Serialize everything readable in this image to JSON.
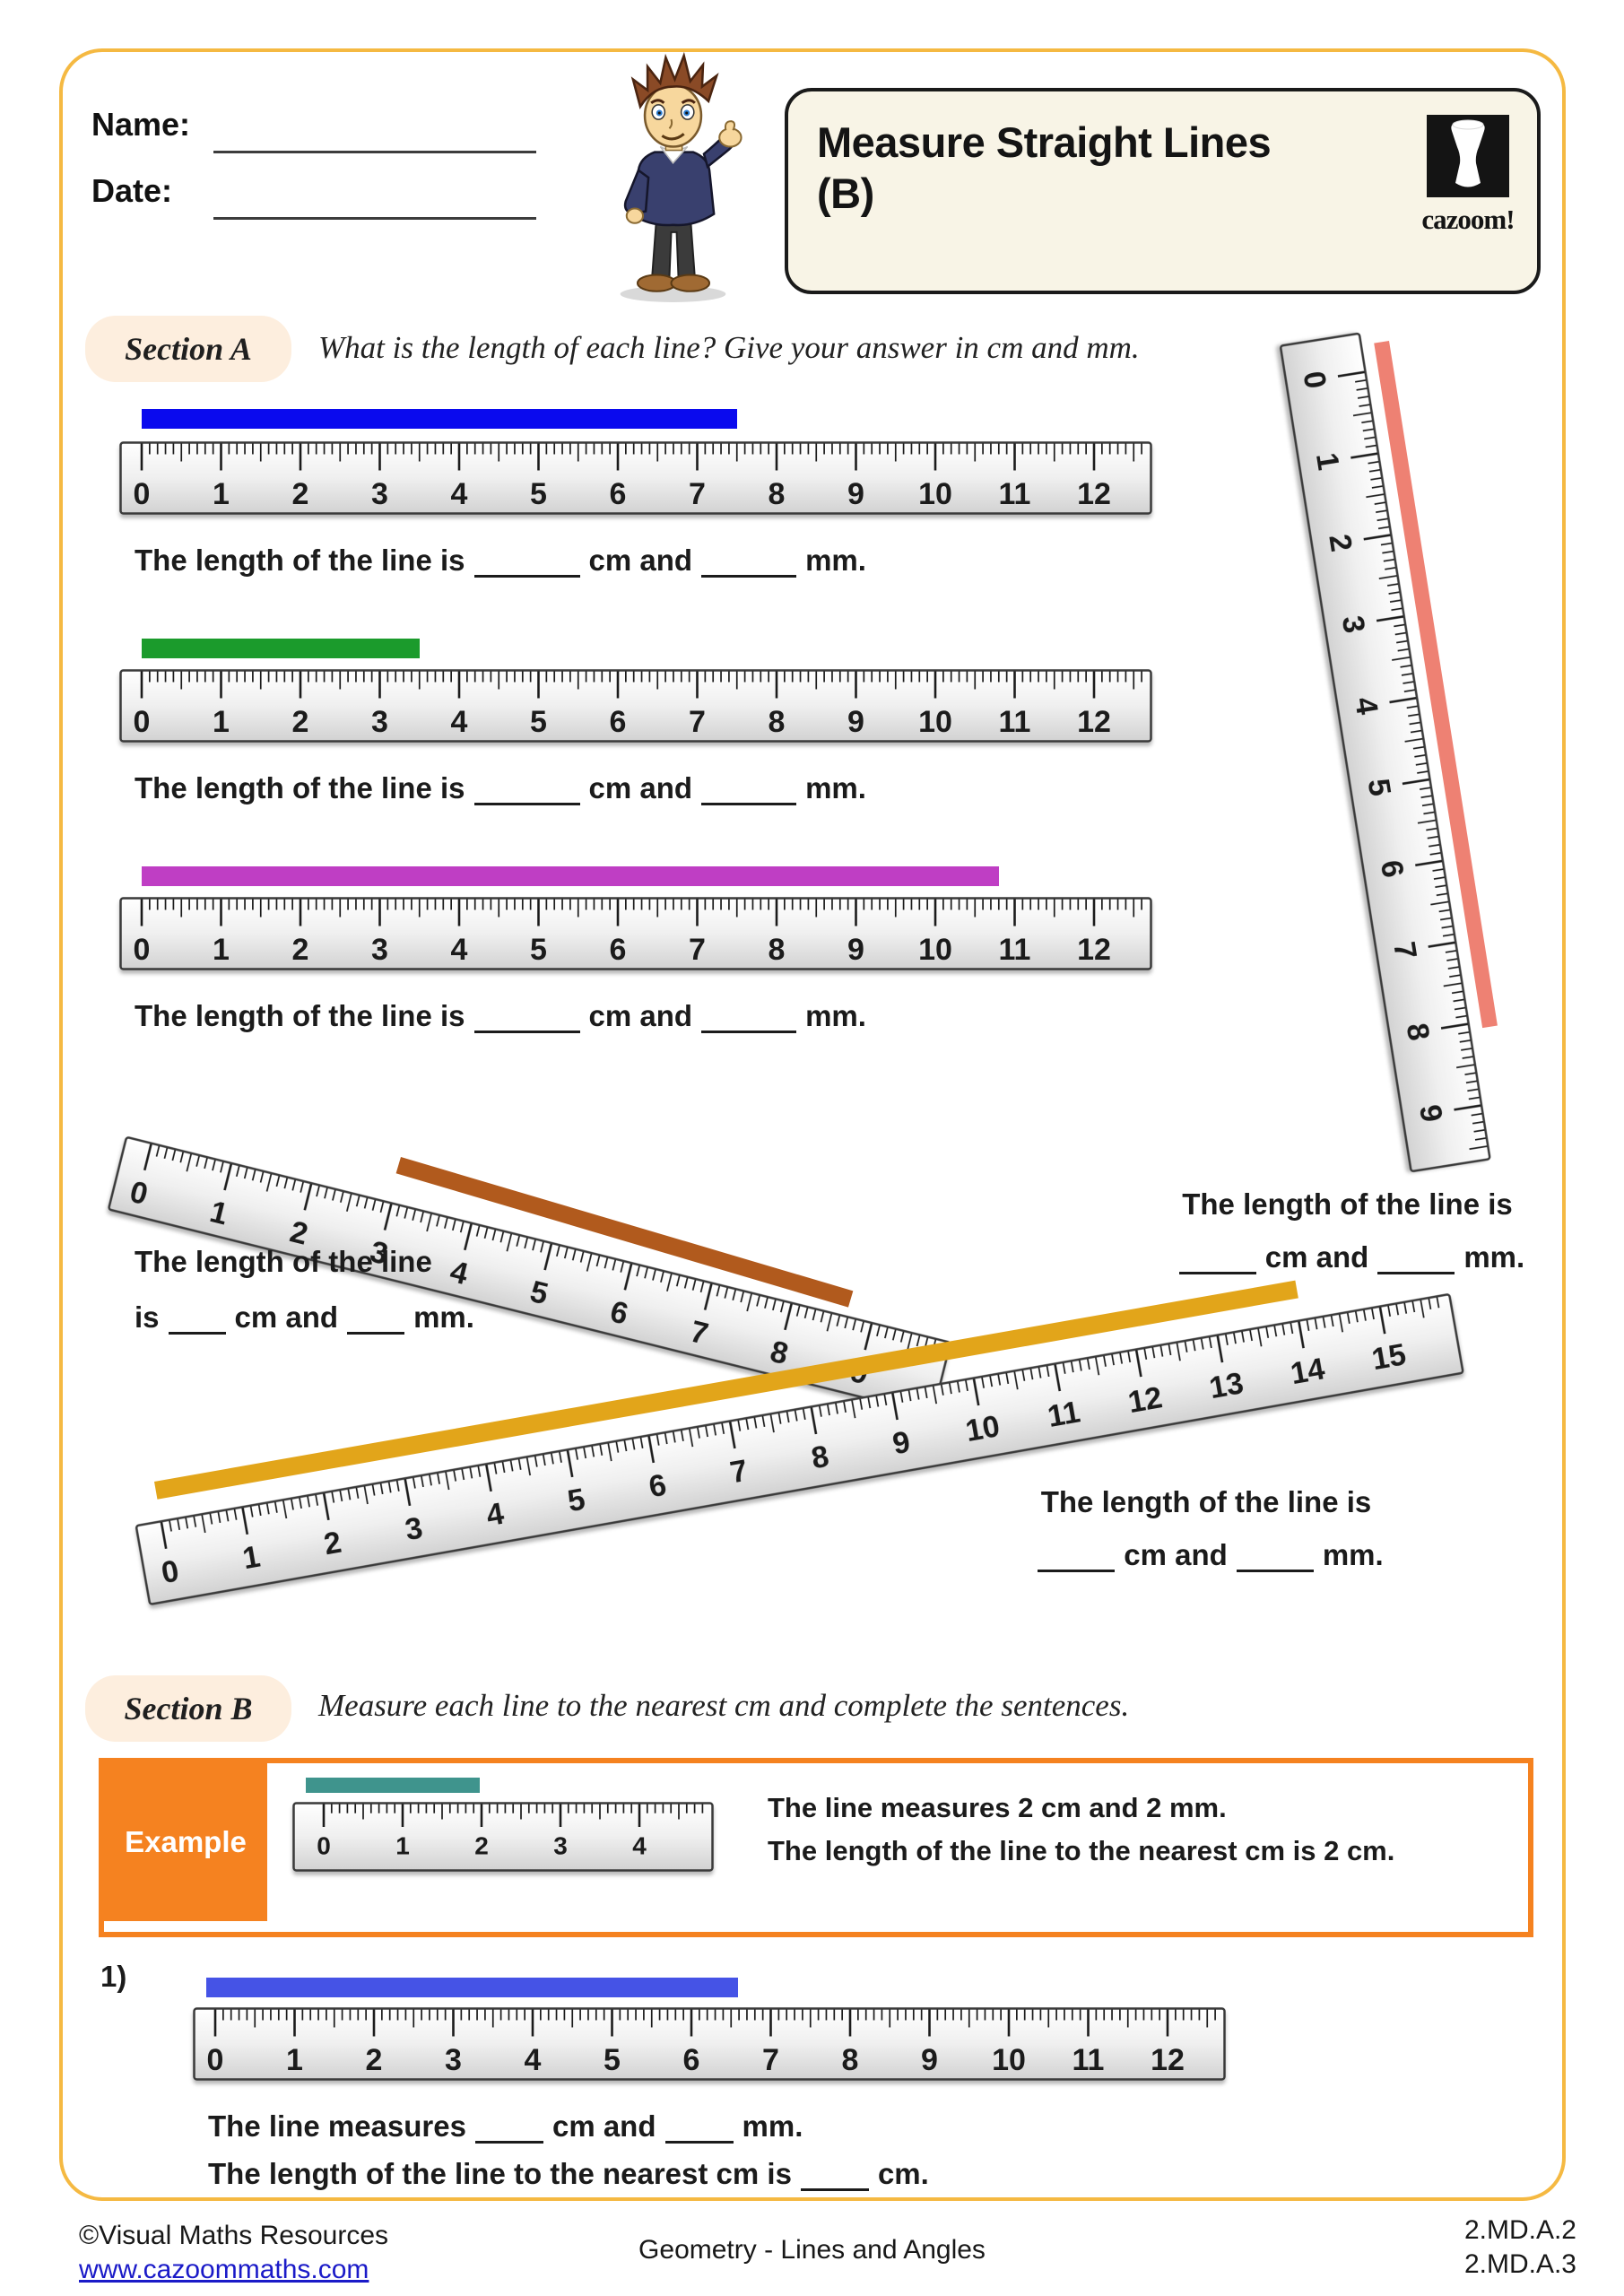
{
  "header": {
    "name_label": "Name:",
    "date_label": "Date:",
    "title_line1": "Measure Straight Lines",
    "title_line2": "(B)",
    "logo_text": "cazoom!",
    "border_color": "#f5b942"
  },
  "section_a": {
    "label": "Section A",
    "instruction": "What is the length of each line? Give your answer in cm and mm.",
    "answer_sentence": {
      "p1": "The length of the line is",
      "p2": "cm and",
      "p3": "mm."
    },
    "tilted_sentence": {
      "p1": "The length of the line",
      "p2": "is",
      "p3": "cm and",
      "p4": "mm."
    },
    "side_sentence": {
      "p1": "The length of the line is",
      "p2": "cm and",
      "p3": "mm."
    },
    "rulers": {
      "r1": {
        "min": 0,
        "max": 12
      },
      "r2": {
        "min": 0,
        "max": 12
      },
      "r3": {
        "min": 0,
        "max": 12
      },
      "tilted": {
        "min": 0,
        "max": 9
      },
      "vertical": {
        "min": 0,
        "max": 9
      },
      "long": {
        "min": 0,
        "max": 15
      }
    },
    "lines": {
      "l1": {
        "color": "#0a0aee",
        "start_cm": 0,
        "length_cm": 7.5
      },
      "l2": {
        "color": "#1b9b2c",
        "start_cm": 0,
        "length_cm": 3.5
      },
      "l3": {
        "color": "#bf3ec4",
        "start_cm": 0,
        "length_cm": 10.8
      },
      "l4": {
        "color": "#b15a1d",
        "start_cm": 3.1,
        "length_cm": 5.6
      },
      "l5": {
        "color": "#ee8173",
        "start_cm": 0,
        "length_cm": 8.4
      },
      "l6": {
        "color": "#e2a51a",
        "start_cm": 0,
        "length_cm": 13.6
      }
    }
  },
  "section_b": {
    "label": "Section B",
    "instruction": "Measure each line to the nearest cm and complete the sentences.",
    "example": {
      "label": "Example",
      "ruler": {
        "min": 0,
        "max": 4
      },
      "line": {
        "color": "#3f948d",
        "start_cm": 0,
        "length_cm": 2.2
      },
      "text_line1": "The line measures 2 cm and 2 mm.",
      "text_line2": "The length of the line to the nearest cm is 2 cm."
    },
    "q1": {
      "number": "1)",
      "ruler": {
        "min": 0,
        "max": 12
      },
      "line": {
        "color": "#4553e6",
        "start_cm": 0,
        "length_cm": 6.7
      },
      "sentence1": {
        "p1": "The line measures",
        "p2": "cm and",
        "p3": "mm."
      },
      "sentence2": {
        "p1": "The length of the line to the nearest cm is",
        "p2": "cm."
      }
    }
  },
  "footer": {
    "copyright": "©Visual Maths Resources",
    "website": "www.cazoommaths.com",
    "center": "Geometry - Lines and Angles",
    "standards": [
      "2.MD.A.2",
      "2.MD.A.3"
    ]
  }
}
